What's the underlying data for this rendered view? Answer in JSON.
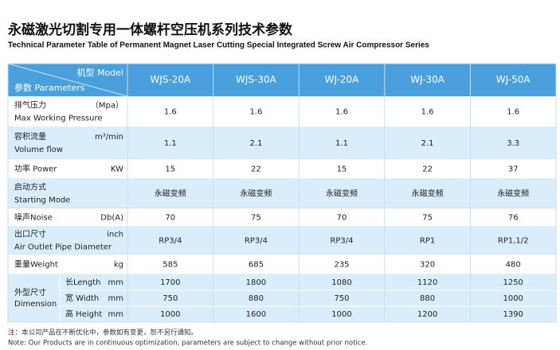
{
  "header": {
    "title": "永磁激光切割专用一体螺杆空压机系列技术参数",
    "subtitle": "Technical Parameter Table of Permanent Magnet Laser Cutting Special Integrated Screw Air Compressor Series"
  },
  "table": {
    "model_label": "机型 Model",
    "param_label": "参数 Parameters",
    "models": [
      "WJS-20A",
      "WJS-30A",
      "WJ-20A",
      "WJ-30A",
      "WJ-50A"
    ],
    "rows": [
      {
        "label": [
          "排气压力",
          "Max Working Pressure"
        ],
        "unit": "（Mpa）",
        "values": [
          1.6,
          1.6,
          1.6,
          1.6,
          1.6
        ]
      },
      {
        "label": [
          "容积流量",
          "Volume flow"
        ],
        "unit": "m³/min",
        "values": [
          1.1,
          2.1,
          1.1,
          2.1,
          3.3
        ]
      },
      {
        "label": [
          "功率 Power"
        ],
        "unit": "KW",
        "values": [
          15,
          22,
          15,
          22,
          37
        ]
      },
      {
        "label": [
          "启动方式",
          "Starting Mode"
        ],
        "values": [
          "永磁变频",
          "永磁变频",
          "永磁变频",
          "永磁变频",
          "永磁变频"
        ]
      },
      {
        "label": [
          "噪声Noise"
        ],
        "unit": "Db(A)",
        "values": [
          70,
          75,
          70,
          75,
          76
        ]
      },
      {
        "label": [
          "出口尺寸",
          "Air Outlet Pipe Diameter"
        ],
        "unit": "inch",
        "values": [
          "RP3/4",
          "RP3/4",
          "RP3/4",
          "RP1",
          "RP1,1/2"
        ]
      },
      {
        "label": [
          "重量Weight"
        ],
        "unit": "kg",
        "values": [
          585,
          685,
          235,
          320,
          480
        ]
      }
    ],
    "dimension": {
      "label": [
        "外型尺寸",
        "Dimension"
      ],
      "rows": [
        {
          "label": "长Length",
          "unit": "mm",
          "values": [
            1700,
            1800,
            1080,
            1120,
            1250
          ]
        },
        {
          "label": "宽 Width",
          "unit": "mm",
          "values": [
            750,
            880,
            750,
            880,
            1000
          ]
        },
        {
          "label": "高 Height",
          "unit": "mm",
          "values": [
            1000,
            1600,
            1000,
            1200,
            1390
          ]
        }
      ]
    }
  },
  "notes": [
    "注：本公司产品在不断优化中，参数如有变更，恕不另行通知。",
    "Note: Our Products are in continuous optimization, parameters are subject to change without prior notice."
  ]
}
